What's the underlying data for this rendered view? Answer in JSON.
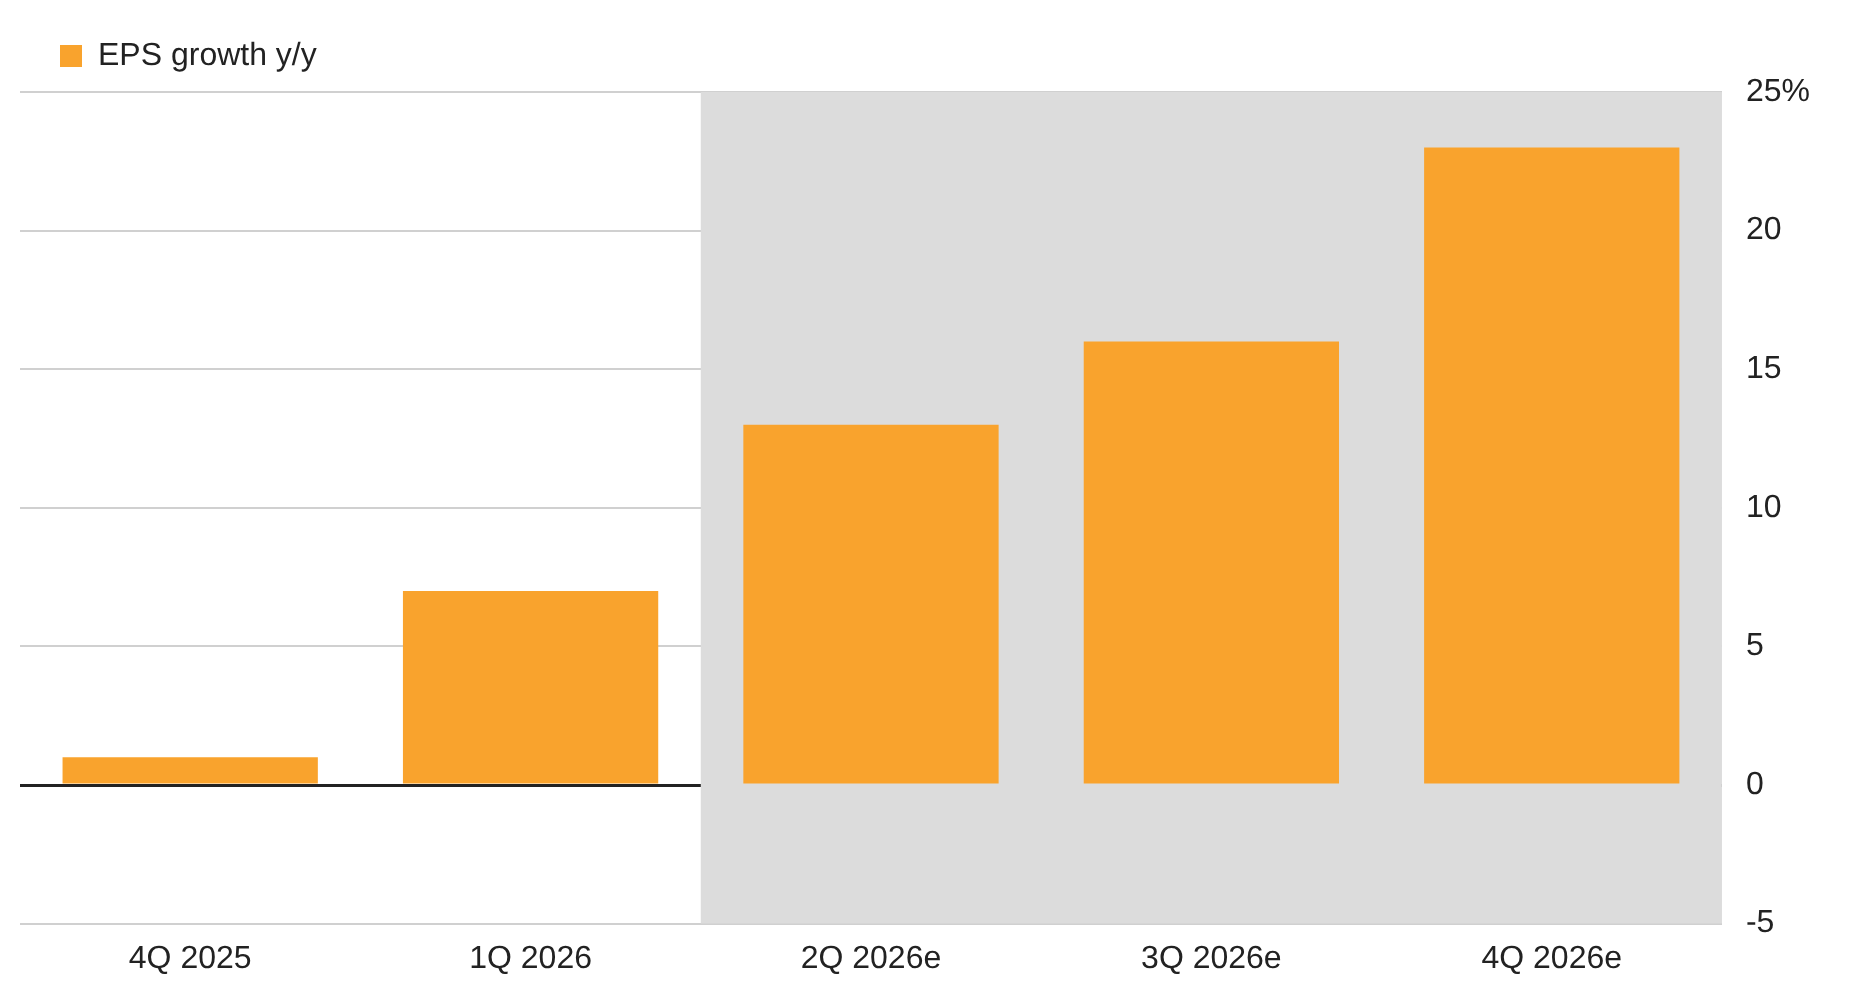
{
  "chart_data": {
    "type": "bar",
    "categories": [
      "4Q 2025",
      "1Q 2026",
      "2Q 2026e",
      "3Q 2026e",
      "4Q 2026e"
    ],
    "series": [
      {
        "name": "EPS growth y/y",
        "color": "#f9a32d",
        "values": [
          1.0,
          7.0,
          13.0,
          16.0,
          23.0
        ]
      }
    ],
    "ylim": [
      -5,
      25
    ],
    "yticks": [
      -5,
      0,
      5,
      10,
      15,
      {
        "value": 20,
        "label": "20"
      },
      {
        "value": 25,
        "label": "25%"
      }
    ],
    "bands": [
      {
        "axis": "x",
        "from": "2Q 2026e",
        "to": "4Q 2026e",
        "color": "#dcdcdc"
      }
    ],
    "grid": "y",
    "legend": "top left"
  }
}
